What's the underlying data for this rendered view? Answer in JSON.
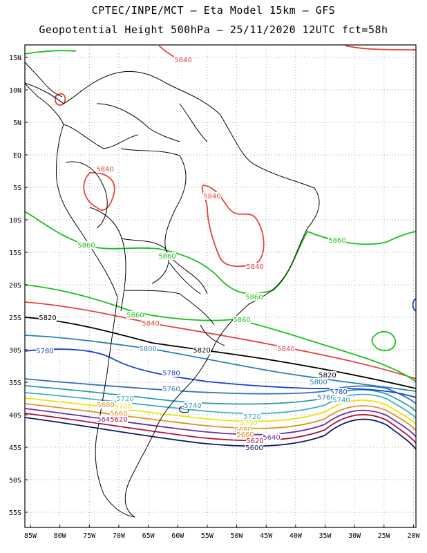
{
  "title_line1": "CPTEC/INPE/MCT –  Eta Model 15km – GFS",
  "title_line2": "Geopotential Height 500hPa – 25/11/2020 12UTC fct=58h",
  "lat_labels": [
    "15N",
    "10N",
    "5N",
    "EQ",
    "5S",
    "10S",
    "15S",
    "20S",
    "25S",
    "30S",
    "35S",
    "40S",
    "45S",
    "50S",
    "55S"
  ],
  "lon_labels": [
    "85W",
    "80W",
    "75W",
    "70W",
    "65W",
    "60W",
    "55W",
    "50W",
    "45W",
    "40W",
    "35W",
    "30W",
    "25W",
    "20W"
  ],
  "colors": {
    "c5600": "#0c1a66",
    "c5620": "#b0103a",
    "c5640": "#6a2fa0",
    "c5660": "#e09020",
    "c5700": "#f2e000",
    "c5720": "#3fb0c8",
    "c5740": "#2a9aa8",
    "c5760": "#2e74b8",
    "c5780": "#1a3fd0",
    "c5800": "#2a80b0",
    "c5820": "#000000",
    "c5840": "#e8403a",
    "c5860": "#18c018",
    "coast": "#000000",
    "grid": "#888888"
  },
  "contour_labels": [
    {
      "value": "5840",
      "color": "#e8403a"
    },
    {
      "value": "5840",
      "color": "#e8403a"
    },
    {
      "value": "5840",
      "color": "#e8403a"
    },
    {
      "value": "5840",
      "color": "#e8403a"
    },
    {
      "value": "5860",
      "color": "#18c018"
    },
    {
      "value": "5860",
      "color": "#18c018"
    },
    {
      "value": "5860",
      "color": "#18c018"
    },
    {
      "value": "5860",
      "color": "#18c018"
    },
    {
      "value": "5860",
      "color": "#18c018"
    },
    {
      "value": "5820",
      "color": "#000000"
    },
    {
      "value": "5840",
      "color": "#e8403a"
    },
    {
      "value": "5840",
      "color": "#e8403a"
    },
    {
      "value": "5860",
      "color": "#18c018"
    },
    {
      "value": "5780",
      "color": "#1a3fd0"
    },
    {
      "value": "5800",
      "color": "#2a80b0"
    },
    {
      "value": "5820",
      "color": "#000000"
    },
    {
      "value": "5780",
      "color": "#1a3fd0"
    },
    {
      "value": "5820",
      "color": "#000000"
    },
    {
      "value": "5800",
      "color": "#2a80b0"
    },
    {
      "value": "5760",
      "color": "#2e74b8"
    },
    {
      "value": "5720",
      "color": "#3fb0c8"
    },
    {
      "value": "5740",
      "color": "#2a9aa8"
    },
    {
      "value": "5780",
      "color": "#1a3fd0"
    },
    {
      "value": "5760",
      "color": "#2e74b8"
    },
    {
      "value": "5740",
      "color": "#2a9aa8"
    },
    {
      "value": "5680",
      "color": "#e09020"
    },
    {
      "value": "5700",
      "color": "#f2e000"
    },
    {
      "value": "5660",
      "color": "#e09020"
    },
    {
      "value": "5640",
      "color": "#6a2fa0"
    },
    {
      "value": "5620",
      "color": "#b0103a"
    },
    {
      "value": "5720",
      "color": "#3fb0c8"
    },
    {
      "value": "5700",
      "color": "#f2e000"
    },
    {
      "value": "5680",
      "color": "#e09020"
    },
    {
      "value": "5660",
      "color": "#e09020"
    },
    {
      "value": "5640",
      "color": "#6a2fa0"
    },
    {
      "value": "5620",
      "color": "#b0103a"
    },
    {
      "value": "5600",
      "color": "#0c1a66"
    }
  ]
}
